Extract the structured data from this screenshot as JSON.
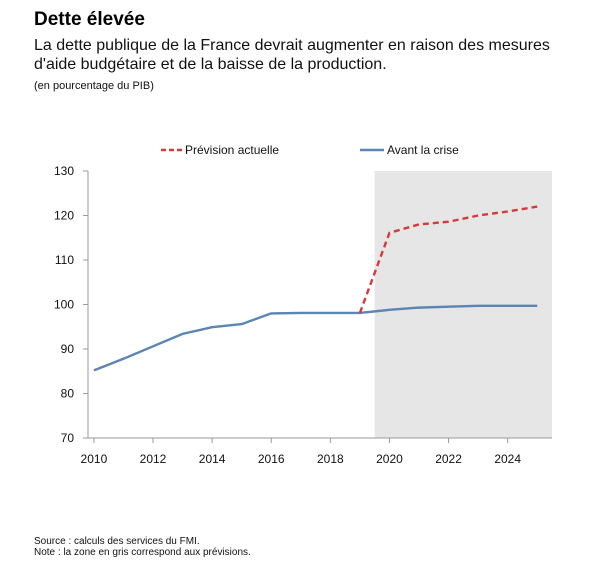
{
  "header": {
    "title": "Dette élevée",
    "subtitle": "La dette publique de la France devrait augmenter en raison des mesures d'aide budgétaire et de la baisse de la production.",
    "unit_note": "(en pourcentage du PIB)"
  },
  "footer": {
    "source": "Source : calculs des services du FMI.",
    "note": "Note : la zone en gris correspond aux prévisions."
  },
  "colors": {
    "forecast": "#d43a3a",
    "baseline": "#5b85b3",
    "shade": "#e6e6e6",
    "axis": "#9a9a9a"
  },
  "chart_data": {
    "type": "line",
    "xlim": [
      2009.8,
      2025.5
    ],
    "ylim": [
      70,
      130
    ],
    "yticks": [
      70,
      80,
      90,
      100,
      110,
      120,
      130
    ],
    "xticks": [
      2010,
      2012,
      2014,
      2016,
      2018,
      2020,
      2022,
      2024
    ],
    "shaded_from": 2019.5,
    "grid": false,
    "legend_position": "top",
    "series": [
      {
        "name": "Avant la crise",
        "style": "solid",
        "points": [
          [
            2010,
            85.2
          ],
          [
            2011,
            87.8
          ],
          [
            2012,
            90.6
          ],
          [
            2013,
            93.4
          ],
          [
            2014,
            94.9
          ],
          [
            2015,
            95.6
          ],
          [
            2016,
            98.0
          ],
          [
            2017,
            98.1
          ],
          [
            2018,
            98.1
          ],
          [
            2019,
            98.1
          ],
          [
            2020,
            98.8
          ],
          [
            2021,
            99.3
          ],
          [
            2022,
            99.5
          ],
          [
            2023,
            99.7
          ],
          [
            2024,
            99.7
          ],
          [
            2025,
            99.7
          ]
        ]
      },
      {
        "name": "Prévision actuelle",
        "style": "dashed",
        "points": [
          [
            2019,
            98.1
          ],
          [
            2020,
            116.1
          ],
          [
            2021,
            118.0
          ],
          [
            2022,
            118.6
          ],
          [
            2023,
            120.0
          ],
          [
            2024,
            120.9
          ],
          [
            2025,
            122.0
          ]
        ]
      }
    ]
  }
}
